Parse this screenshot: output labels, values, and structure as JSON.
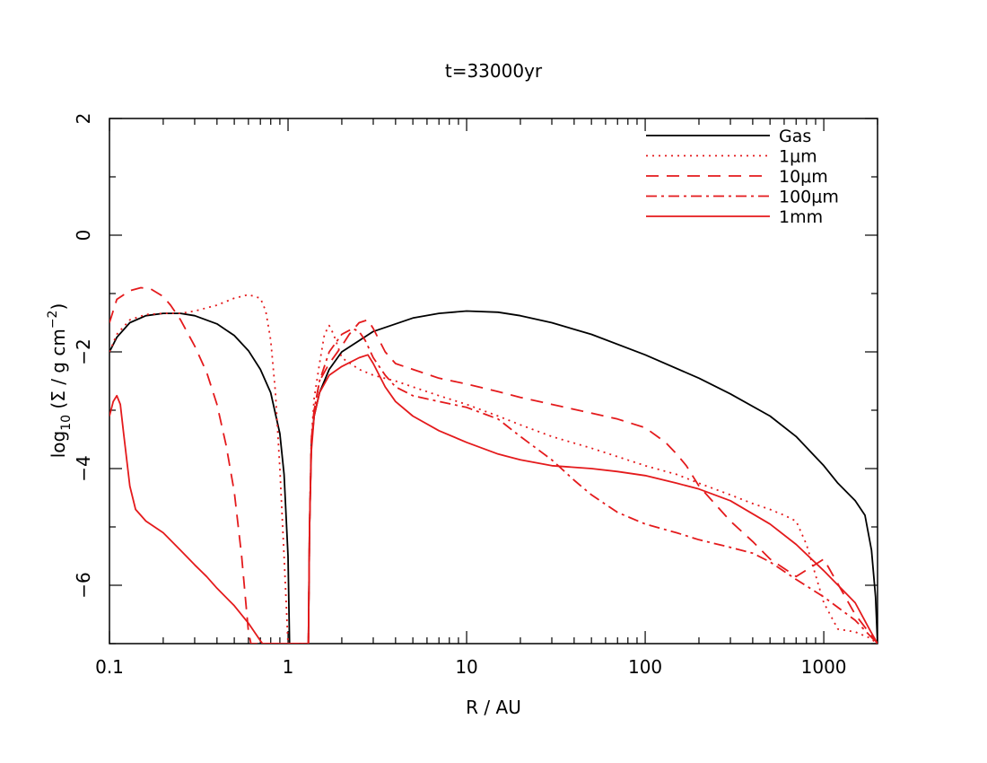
{
  "chart_data": {
    "type": "line",
    "title": "t=33000yr",
    "xlabel": "R / AU",
    "ylabel_parts": [
      "log",
      "10",
      " (Σ / g cm",
      "−2",
      ")"
    ],
    "x_scale": "log",
    "xlim": [
      0.1,
      2000
    ],
    "ylim": [
      -7,
      2
    ],
    "x_ticks": [
      0.1,
      1,
      10,
      100,
      1000
    ],
    "x_tick_labels": [
      "0.1",
      "1",
      "10",
      "100",
      "1000"
    ],
    "y_ticks": [
      -6,
      -4,
      -2,
      0,
      2
    ],
    "y_tick_labels": [
      "−6",
      "−4",
      "−2",
      "0",
      "2"
    ],
    "legend_position": "top-right",
    "series": [
      {
        "name": "Gas",
        "color": "#000000",
        "dash": "solid",
        "x": [
          0.1,
          0.11,
          0.13,
          0.16,
          0.2,
          0.25,
          0.3,
          0.4,
          0.5,
          0.6,
          0.7,
          0.8,
          0.9,
          0.95,
          1.0,
          1.02,
          1.04,
          1.3,
          1.32,
          1.35,
          1.4,
          1.5,
          1.7,
          2,
          3,
          5,
          7,
          10,
          15,
          20,
          30,
          50,
          100,
          200,
          300,
          500,
          700,
          1000,
          1200,
          1500,
          1700,
          1850,
          1950,
          2000
        ],
        "y": [
          -2.0,
          -1.75,
          -1.5,
          -1.38,
          -1.34,
          -1.34,
          -1.38,
          -1.52,
          -1.72,
          -1.98,
          -2.3,
          -2.7,
          -3.4,
          -4.1,
          -5.5,
          -7,
          -7,
          -7,
          -5,
          -3.6,
          -3.1,
          -2.7,
          -2.3,
          -2.0,
          -1.65,
          -1.42,
          -1.34,
          -1.3,
          -1.32,
          -1.38,
          -1.5,
          -1.7,
          -2.05,
          -2.45,
          -2.72,
          -3.1,
          -3.45,
          -3.95,
          -4.25,
          -4.55,
          -4.8,
          -5.4,
          -6.2,
          -7
        ]
      },
      {
        "name": "1μm",
        "color": "#e41a1c",
        "dash": "2,5",
        "x": [
          0.1,
          0.11,
          0.13,
          0.16,
          0.2,
          0.25,
          0.3,
          0.4,
          0.5,
          0.6,
          0.7,
          0.75,
          0.8,
          0.85,
          0.9,
          0.95,
          1.0,
          1.3,
          1.32,
          1.35,
          1.4,
          1.5,
          1.6,
          1.7,
          1.8,
          2,
          2.5,
          3,
          4,
          5,
          7,
          10,
          15,
          20,
          30,
          50,
          100,
          150,
          200,
          300,
          400,
          500,
          600,
          700,
          800,
          1000,
          1200,
          1500,
          1800,
          2000
        ],
        "y": [
          -2.0,
          -1.7,
          -1.45,
          -1.36,
          -1.34,
          -1.34,
          -1.3,
          -1.2,
          -1.08,
          -1.02,
          -1.08,
          -1.3,
          -1.8,
          -2.7,
          -4.0,
          -5.5,
          -7,
          -7,
          -5,
          -3.5,
          -2.8,
          -2.2,
          -1.7,
          -1.55,
          -1.7,
          -2.1,
          -2.3,
          -2.4,
          -2.5,
          -2.6,
          -2.75,
          -2.9,
          -3.1,
          -3.25,
          -3.45,
          -3.65,
          -3.95,
          -4.1,
          -4.25,
          -4.45,
          -4.6,
          -4.7,
          -4.8,
          -4.9,
          -5.3,
          -6.3,
          -6.75,
          -6.8,
          -6.9,
          -7
        ]
      },
      {
        "name": "10μm",
        "color": "#e41a1c",
        "dash": "14,9",
        "x": [
          0.1,
          0.11,
          0.13,
          0.15,
          0.17,
          0.2,
          0.22,
          0.25,
          0.3,
          0.35,
          0.4,
          0.45,
          0.5,
          0.55,
          0.6,
          0.62,
          1.3,
          1.32,
          1.35,
          1.4,
          1.5,
          1.7,
          2,
          2.2,
          2.5,
          2.8,
          3,
          3.5,
          4,
          5,
          7,
          10,
          15,
          20,
          30,
          50,
          70,
          100,
          130,
          150,
          170,
          200,
          300,
          400,
          500,
          700,
          1000,
          1500,
          2000
        ],
        "y": [
          -1.5,
          -1.1,
          -0.95,
          -0.9,
          -0.92,
          -1.05,
          -1.2,
          -1.45,
          -1.9,
          -2.35,
          -2.9,
          -3.6,
          -4.4,
          -5.5,
          -6.8,
          -7,
          -7,
          -5,
          -3.6,
          -3.0,
          -2.5,
          -2.2,
          -1.9,
          -1.7,
          -1.5,
          -1.45,
          -1.6,
          -2.0,
          -2.2,
          -2.3,
          -2.45,
          -2.55,
          -2.68,
          -2.78,
          -2.9,
          -3.05,
          -3.15,
          -3.3,
          -3.55,
          -3.75,
          -3.95,
          -4.3,
          -4.9,
          -5.25,
          -5.55,
          -5.85,
          -5.55,
          -6.5,
          -7
        ]
      },
      {
        "name": "100μm",
        "color": "#e41a1c",
        "dash": "12,5,3,5",
        "x": [
          1.3,
          1.32,
          1.35,
          1.4,
          1.5,
          1.7,
          2.0,
          2.3,
          2.5,
          2.7,
          3,
          3.5,
          4,
          5,
          7,
          10,
          15,
          20,
          30,
          40,
          50,
          70,
          100,
          150,
          200,
          300,
          400,
          500,
          700,
          1000,
          1500,
          2000
        ],
        "y": [
          -7,
          -5,
          -3.5,
          -3.0,
          -2.5,
          -2.0,
          -1.7,
          -1.6,
          -1.65,
          -1.8,
          -2.1,
          -2.4,
          -2.6,
          -2.75,
          -2.85,
          -2.95,
          -3.15,
          -3.45,
          -3.85,
          -4.2,
          -4.45,
          -4.75,
          -4.95,
          -5.1,
          -5.22,
          -5.35,
          -5.45,
          -5.6,
          -5.9,
          -6.2,
          -6.6,
          -7
        ]
      },
      {
        "name": "1mm",
        "color": "#e41a1c",
        "dash": "solid",
        "x": [
          0.1,
          0.105,
          0.11,
          0.115,
          0.12,
          0.13,
          0.14,
          0.16,
          0.2,
          0.25,
          0.3,
          0.35,
          0.4,
          0.5,
          0.6,
          0.7,
          0.72,
          1.3,
          1.32,
          1.35,
          1.4,
          1.5,
          1.7,
          2,
          2.5,
          2.8,
          3,
          3.5,
          4,
          5,
          7,
          10,
          15,
          20,
          30,
          50,
          70,
          100,
          150,
          200,
          300,
          500,
          700,
          1000,
          1500,
          1800,
          2000
        ],
        "y": [
          -3.1,
          -2.85,
          -2.75,
          -2.9,
          -3.4,
          -4.3,
          -4.7,
          -4.9,
          -5.1,
          -5.4,
          -5.65,
          -5.85,
          -6.05,
          -6.35,
          -6.65,
          -6.95,
          -7,
          -7,
          -5,
          -3.7,
          -3.1,
          -2.7,
          -2.4,
          -2.25,
          -2.1,
          -2.05,
          -2.2,
          -2.6,
          -2.85,
          -3.1,
          -3.35,
          -3.55,
          -3.75,
          -3.85,
          -3.95,
          -4.0,
          -4.05,
          -4.12,
          -4.25,
          -4.35,
          -4.55,
          -4.95,
          -5.3,
          -5.75,
          -6.3,
          -6.75,
          -7
        ]
      }
    ]
  }
}
